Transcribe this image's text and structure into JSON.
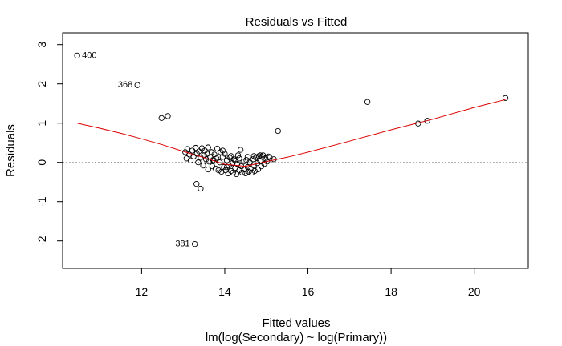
{
  "chart_data": {
    "type": "scatter",
    "title": "Residuals vs Fitted",
    "xlabel": "Fitted values",
    "xlabel2": "lm(log(Secondary) ~ log(Primary))",
    "ylabel": "Residuals",
    "xlim": [
      10.1,
      21.3
    ],
    "ylim": [
      -2.7,
      3.3
    ],
    "xticks": [
      12,
      14,
      16,
      18,
      20
    ],
    "yticks": [
      -2,
      -1,
      0,
      1,
      2,
      3
    ],
    "grid": false,
    "zero_line": 0,
    "labeled_points": [
      {
        "label": "400",
        "x": 10.45,
        "y": 2.72
      },
      {
        "label": "368",
        "x": 11.9,
        "y": 1.97
      },
      {
        "label": "381",
        "x": 13.28,
        "y": -2.08
      }
    ],
    "points": [
      [
        10.45,
        2.72
      ],
      [
        11.9,
        1.97
      ],
      [
        12.48,
        1.13
      ],
      [
        12.63,
        1.18
      ],
      [
        13.28,
        -2.08
      ],
      [
        13.32,
        -0.55
      ],
      [
        13.42,
        -0.67
      ],
      [
        15.28,
        0.8
      ],
      [
        17.43,
        1.54
      ],
      [
        18.65,
        0.99
      ],
      [
        18.87,
        1.06
      ],
      [
        20.75,
        1.64
      ],
      [
        15.18,
        0.08
      ],
      [
        15.05,
        0.15
      ],
      [
        14.92,
        0.18
      ],
      [
        13.05,
        0.26
      ],
      [
        13.08,
        0.1
      ],
      [
        13.1,
        0.34
      ],
      [
        13.15,
        0.2
      ],
      [
        13.18,
        0.05
      ],
      [
        13.22,
        0.3
      ],
      [
        13.25,
        0.15
      ],
      [
        13.3,
        0.37
      ],
      [
        13.33,
        0.22
      ],
      [
        13.36,
        0.0
      ],
      [
        13.38,
        0.28
      ],
      [
        13.42,
        0.12
      ],
      [
        13.45,
        0.36
      ],
      [
        13.48,
        -0.08
      ],
      [
        13.5,
        0.18
      ],
      [
        13.52,
        0.3
      ],
      [
        13.55,
        0.08
      ],
      [
        13.58,
        0.22
      ],
      [
        13.6,
        0.38
      ],
      [
        13.62,
        0.02
      ],
      [
        13.65,
        0.14
      ],
      [
        13.68,
        0.26
      ],
      [
        13.7,
        -0.1
      ],
      [
        13.72,
        0.06
      ],
      [
        13.75,
        0.2
      ],
      [
        13.78,
        -0.16
      ],
      [
        13.8,
        0.1
      ],
      [
        13.82,
        0.35
      ],
      [
        13.85,
        -0.2
      ],
      [
        13.88,
        0.0
      ],
      [
        13.9,
        0.26
      ],
      [
        13.92,
        -0.24
      ],
      [
        13.95,
        0.14
      ],
      [
        13.98,
        -0.12
      ],
      [
        14.0,
        0.22
      ],
      [
        14.02,
        -0.2
      ],
      [
        14.05,
        0.05
      ],
      [
        14.08,
        -0.28
      ],
      [
        14.1,
        -0.08
      ],
      [
        14.12,
        0.12
      ],
      [
        14.15,
        -0.22
      ],
      [
        14.18,
        -0.02
      ],
      [
        14.2,
        -0.26
      ],
      [
        14.22,
        0.08
      ],
      [
        14.25,
        -0.14
      ],
      [
        14.28,
        -0.3
      ],
      [
        14.3,
        -0.04
      ],
      [
        14.32,
        0.18
      ],
      [
        14.35,
        -0.2
      ],
      [
        14.38,
        0.32
      ],
      [
        14.4,
        -0.1
      ],
      [
        14.42,
        -0.26
      ],
      [
        14.45,
        0.02
      ],
      [
        14.48,
        -0.18
      ],
      [
        14.5,
        -0.28
      ],
      [
        14.52,
        0.06
      ],
      [
        14.55,
        -0.12
      ],
      [
        14.58,
        -0.24
      ],
      [
        14.6,
        0.0
      ],
      [
        14.62,
        -0.16
      ],
      [
        14.65,
        -0.26
      ],
      [
        14.68,
        0.08
      ],
      [
        14.7,
        -0.08
      ],
      [
        14.72,
        -0.22
      ],
      [
        14.75,
        0.12
      ],
      [
        14.78,
        -0.02
      ],
      [
        14.8,
        -0.18
      ],
      [
        14.82,
        0.16
      ],
      [
        14.85,
        0.04
      ],
      [
        14.88,
        -0.1
      ],
      [
        14.9,
        0.14
      ],
      [
        14.95,
        -0.04
      ],
      [
        14.98,
        0.1
      ],
      [
        15.02,
        0.02
      ],
      [
        15.08,
        0.12
      ],
      [
        13.6,
        -0.18
      ],
      [
        13.95,
        0.3
      ],
      [
        14.15,
        0.16
      ],
      [
        14.35,
        0.1
      ],
      [
        14.55,
        0.14
      ],
      [
        14.7,
        0.16
      ],
      [
        14.85,
        0.18
      ],
      [
        13.75,
        0.04
      ],
      [
        14.05,
        -0.12
      ],
      [
        14.25,
        0.04
      ]
    ],
    "smooth": {
      "x": [
        10.45,
        11.0,
        11.5,
        12.0,
        12.5,
        13.0,
        13.5,
        14.0,
        14.5,
        15.0,
        15.5,
        16.0,
        17.0,
        18.0,
        19.0,
        20.0,
        20.75
      ],
      "y": [
        1.0,
        0.87,
        0.74,
        0.6,
        0.45,
        0.28,
        0.12,
        -0.05,
        -0.1,
        0.02,
        0.13,
        0.26,
        0.54,
        0.83,
        1.1,
        1.4,
        1.6
      ]
    },
    "colors": {
      "points": "#000000",
      "smooth": "#dd0000",
      "zero_line": "#999999"
    }
  }
}
